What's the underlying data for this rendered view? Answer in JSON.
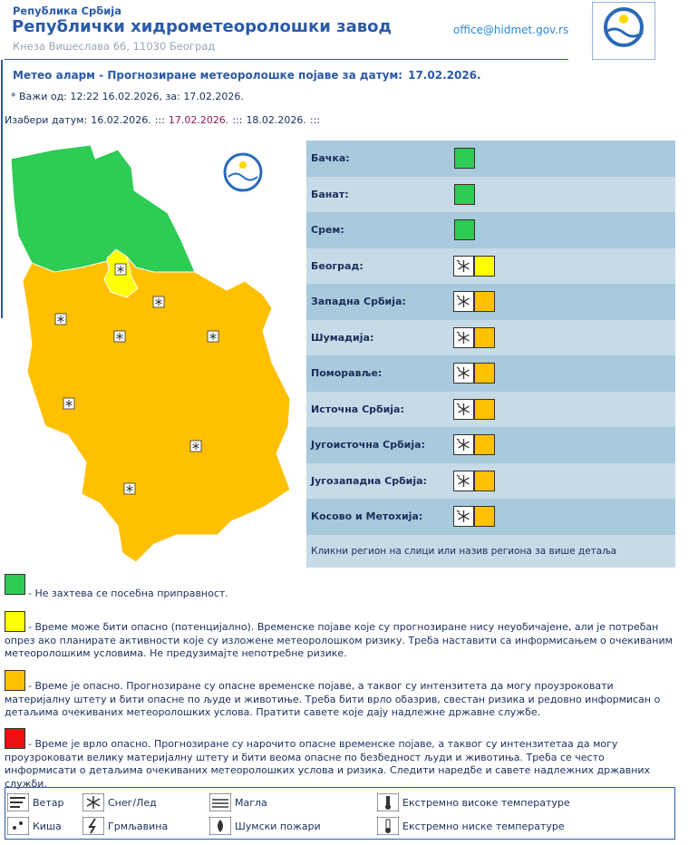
{
  "header": {
    "country": "Република Србија",
    "institution": "Републички хидрометеоролошки завод",
    "address": "Кнеза Вишеслава 66, 11030 Београд",
    "email": "office@hidmet.gov.rs"
  },
  "title": {
    "text": "Метео аларм - Прогнозиране метеоролошке појаве за датум:",
    "date": "17.02.2026."
  },
  "validity": "* Важи од: 12:22 16.02.2026, за: 17.02.2026.",
  "date_selector": {
    "label": "Изабери датум:",
    "separator": ":::",
    "dates": [
      "16.02.2026.",
      "17.02.2026.",
      "18.02.2026."
    ]
  },
  "regions": [
    {
      "name": "Бачка:",
      "color": "#2dcc55",
      "snow": false
    },
    {
      "name": "Банат:",
      "color": "#2dcc55",
      "snow": false
    },
    {
      "name": "Срем:",
      "color": "#2dcc55",
      "snow": false
    },
    {
      "name": "Београд:",
      "color": "#ffff00",
      "snow": true
    },
    {
      "name": "Западна Србија:",
      "color": "#ffc000",
      "snow": true
    },
    {
      "name": "Шумадија:",
      "color": "#ffc000",
      "snow": true
    },
    {
      "name": "Поморавље:",
      "color": "#ffc000",
      "snow": true
    },
    {
      "name": "Источна Србија:",
      "color": "#ffc000",
      "snow": true
    },
    {
      "name": "Југоисточна Србија:",
      "color": "#ffc000",
      "snow": true
    },
    {
      "name": "Југозападна Србија:",
      "color": "#ffc000",
      "snow": true
    },
    {
      "name": "Косово и Метохија:",
      "color": "#ffc000",
      "snow": true
    }
  ],
  "regions_hint": "Кликни регион на слици или назив региона за више детаља",
  "levels": [
    {
      "color": "#2dcc55",
      "text": "- Не захтева се посебна приправност."
    },
    {
      "color": "#ffff00",
      "text": "- Време може бити опасно (потенцијално). Временске појаве које су прогнозиране нису неуобичајене, али је потребан опрез ако планирате активности које су изложене метеоролошком ризику. Треба наставити са информисањем о очекиваним метеоролошким условима. Не предузимајте непотребне ризике."
    },
    {
      "color": "#ffc000",
      "text": "- Време је опасно. Прогнозиране су опасне временске појаве, а таквог су интензитета да могу проузроковати материјалну штету и бити опасне по људе и животиње. Треба бити врло обазрив, свестан ризика и редовно информисан о детаљима очекиваних метеоролошких услова. Пратити савете које дају надлежне државне службе."
    },
    {
      "color": "#ee1111",
      "text": "- Време је врло опасно. Прогнозиране су нарочито опасне временске појаве, а таквог су интензитетаа да могу проузроковати велику материјалну штету и бити веома опасне по безбедност људи и животиња. Треба се често информисати о детаљима очекиваних метеоролошких услова и ризика. Следити наредбе и савете надлежних државних служби."
    }
  ],
  "phenomena": [
    "Ветар",
    "Киша",
    "Снег/Лед",
    "Грмљавина",
    "Магла",
    "Шумски пожари",
    "Екстремно високе температуре",
    "Екстремно ниске температуре"
  ]
}
